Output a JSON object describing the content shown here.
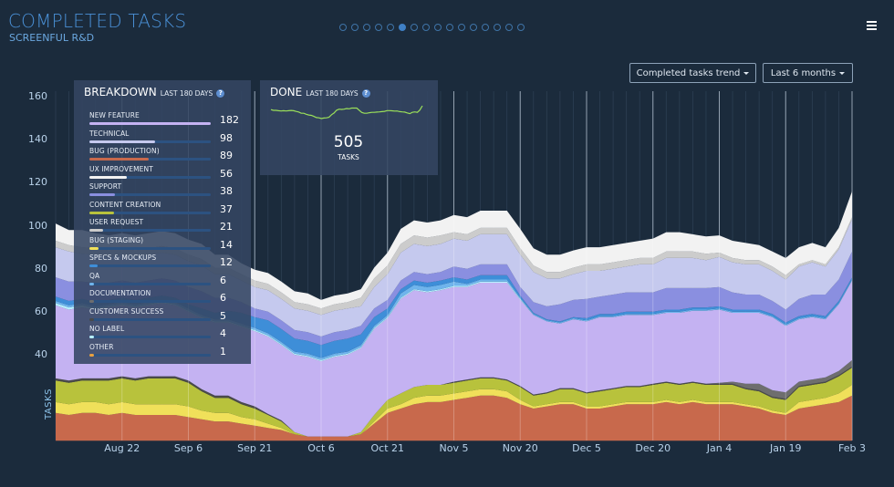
{
  "header": {
    "title": "COMPLETED TASKS",
    "subtitle": "SCREENFUL R&D",
    "pager": {
      "count": 16,
      "active_index": 5
    },
    "menu_icon": "hamburger-menu-icon"
  },
  "controls": {
    "metric_dropdown": "Completed tasks trend",
    "range_dropdown": "Last 6 months"
  },
  "breakdown": {
    "title": "BREAKDOWN",
    "subtitle": "LAST 180 DAYS",
    "help_icon": "?",
    "max": 182,
    "items": [
      {
        "label": "NEW FEATURE",
        "value": 182,
        "color": "#c4b2f2"
      },
      {
        "label": "TECHNICAL",
        "value": 98,
        "color": "#c5c9ee"
      },
      {
        "label": "BUG (PRODUCTION)",
        "value": 89,
        "color": "#c8694c"
      },
      {
        "label": "UX IMPROVEMENT",
        "value": 56,
        "color": "#f2f2f2"
      },
      {
        "label": "SUPPORT",
        "value": 38,
        "color": "#8a8fe0"
      },
      {
        "label": "CONTENT CREATION",
        "value": 37,
        "color": "#b8c23c"
      },
      {
        "label": "USER REQUEST",
        "value": 21,
        "color": "#cccccc"
      },
      {
        "label": "BUG (STAGING)",
        "value": 14,
        "color": "#f0e05a"
      },
      {
        "label": "SPECS & MOCKUPS",
        "value": 12,
        "color": "#3e8ed8"
      },
      {
        "label": "QA",
        "value": 6,
        "color": "#6fb4ec"
      },
      {
        "label": "DOCUMENTATION",
        "value": 6,
        "color": "#6e6e6e"
      },
      {
        "label": "CUSTOMER SUCCESS",
        "value": 5,
        "color": "#4a4a4a"
      },
      {
        "label": "NO LABEL",
        "value": 4,
        "color": "#b8f0ff"
      },
      {
        "label": "OTHER",
        "value": 1,
        "color": "#e8a040"
      }
    ]
  },
  "done": {
    "title": "DONE",
    "subtitle": "LAST 180 DAYS",
    "help_icon": "?",
    "value": "505",
    "unit": "TASKS",
    "sparkline_color": "#9be05a"
  },
  "chart_data": {
    "type": "area",
    "stacked": true,
    "title": "Completed tasks trend",
    "xlabel": "",
    "ylabel": "TASKS",
    "ylim": [
      0,
      165
    ],
    "yticks": [
      40,
      60,
      80,
      100,
      120,
      140,
      160
    ],
    "xtick_labels": [
      "Aug 22",
      "Sep 6",
      "Sep 21",
      "Oct 6",
      "Oct 21",
      "Nov 5",
      "Nov 20",
      "Dec 5",
      "Dec 20",
      "Jan 4",
      "Jan 19",
      "Feb 3"
    ],
    "grid": "vertical",
    "x_dates": [
      "Aug 7",
      "Aug 10",
      "Aug 13",
      "Aug 16",
      "Aug 19",
      "Aug 22",
      "Aug 25",
      "Aug 28",
      "Aug 31",
      "Sep 3",
      "Sep 6",
      "Sep 9",
      "Sep 12",
      "Sep 15",
      "Sep 18",
      "Sep 21",
      "Sep 24",
      "Sep 27",
      "Sep 30",
      "Oct 3",
      "Oct 6",
      "Oct 9",
      "Oct 12",
      "Oct 15",
      "Oct 18",
      "Oct 21",
      "Oct 24",
      "Oct 27",
      "Oct 30",
      "Nov 2",
      "Nov 5",
      "Nov 8",
      "Nov 11",
      "Nov 14",
      "Nov 17",
      "Nov 20",
      "Nov 23",
      "Nov 26",
      "Nov 29",
      "Dec 2",
      "Dec 5",
      "Dec 8",
      "Dec 11",
      "Dec 14",
      "Dec 17",
      "Dec 20",
      "Dec 23",
      "Dec 26",
      "Dec 29",
      "Jan 1",
      "Jan 4",
      "Jan 7",
      "Jan 10",
      "Jan 13",
      "Jan 16",
      "Jan 19",
      "Jan 22",
      "Jan 25",
      "Jan 28",
      "Jan 31",
      "Feb 3"
    ],
    "series": [
      {
        "name": "Bug (production)",
        "color": "#c8694c",
        "values": [
          13,
          12,
          13,
          13,
          12,
          13,
          12,
          12,
          12,
          12,
          11,
          10,
          9,
          9,
          8,
          7,
          6,
          5,
          3,
          2,
          2,
          2,
          2,
          3,
          8,
          13,
          15,
          17,
          18,
          18,
          19,
          20,
          21,
          21,
          20,
          17,
          15,
          16,
          17,
          17,
          15,
          15,
          16,
          17,
          17,
          17,
          18,
          17,
          18,
          17,
          17,
          17,
          16,
          15,
          13,
          12,
          15,
          16,
          17,
          18,
          21
        ]
      },
      {
        "name": "Bug (staging)",
        "color": "#f0e05a",
        "values": [
          5,
          5,
          5,
          5,
          5,
          5,
          5,
          5,
          5,
          5,
          5,
          4,
          4,
          4,
          3,
          3,
          2,
          1,
          0,
          0,
          0,
          0,
          0,
          0,
          1,
          2,
          2,
          3,
          3,
          3,
          3,
          3,
          3,
          3,
          3,
          2,
          1,
          1,
          1,
          1,
          1,
          1,
          1,
          1,
          1,
          1,
          1,
          1,
          1,
          1,
          1,
          1,
          1,
          1,
          1,
          1,
          3,
          3,
          3,
          4,
          5
        ]
      },
      {
        "name": "Content creation",
        "color": "#b8c23c",
        "values": [
          10,
          10,
          10,
          10,
          11,
          11,
          11,
          12,
          12,
          12,
          11,
          9,
          7,
          7,
          6,
          5,
          4,
          3,
          1,
          0,
          0,
          0,
          0,
          1,
          3,
          4,
          5,
          5,
          5,
          5,
          5,
          5,
          5,
          5,
          5,
          6,
          5,
          5,
          6,
          6,
          6,
          7,
          7,
          7,
          7,
          8,
          8,
          8,
          8,
          8,
          8,
          8,
          7,
          7,
          6,
          6,
          7,
          7,
          7,
          8,
          8
        ]
      },
      {
        "name": "Customer success",
        "color": "#4a4a4a",
        "values": [
          1,
          1,
          1,
          1,
          1,
          1,
          1,
          1,
          1,
          1,
          1,
          1,
          1,
          1,
          1,
          1,
          0.5,
          0.5,
          0,
          0,
          0,
          0,
          0,
          0,
          0,
          0,
          0,
          0,
          0,
          0,
          0.5,
          0.5,
          0.5,
          0.5,
          0.5,
          0.5,
          0.5,
          0.5,
          0.5,
          0.5,
          0.5,
          0.5,
          0.5,
          0.5,
          0.5,
          0.5,
          0.5,
          0.5,
          0.5,
          0.5,
          0.5,
          0.5,
          0.5,
          0.5,
          0.5,
          0.5,
          0.5,
          0.5,
          0.5,
          0.5,
          0.5
        ]
      },
      {
        "name": "Documentation",
        "color": "#6e6e6e",
        "values": [
          0,
          0,
          0,
          0,
          0,
          0,
          0,
          0,
          0,
          0,
          0,
          0,
          0,
          0,
          0,
          0,
          0,
          0,
          0,
          0,
          0,
          0,
          0,
          0,
          0,
          0,
          0,
          0,
          0,
          0,
          0,
          0,
          0,
          0,
          0,
          0,
          0,
          0,
          0,
          0,
          0,
          0,
          0,
          0,
          0,
          0,
          0,
          0,
          0,
          0,
          0.5,
          1,
          2,
          3,
          3,
          3,
          2,
          2,
          2,
          2,
          3
        ]
      },
      {
        "name": "New feature",
        "color": "#c4b2f2",
        "values": [
          34,
          33,
          33,
          32,
          33,
          33,
          33,
          33,
          34,
          33,
          32,
          33,
          34,
          34,
          35,
          35,
          36,
          35,
          36,
          37,
          35,
          37,
          38,
          39,
          40,
          38,
          44,
          45,
          43,
          44,
          44,
          43,
          44,
          44,
          45,
          40,
          37,
          33,
          30,
          32,
          33,
          34,
          33,
          33,
          33,
          32,
          32,
          33,
          33,
          34,
          34,
          32,
          33,
          33,
          34,
          31,
          29,
          29,
          27,
          31,
          37
        ]
      },
      {
        "name": "No label",
        "color": "#b8f0ff",
        "values": [
          1,
          1,
          1,
          0.5,
          0.5,
          0.5,
          0.5,
          0.5,
          0.5,
          0.5,
          0.5,
          0.5,
          0.5,
          0.5,
          0.5,
          0.5,
          0.5,
          0.5,
          0.5,
          0.5,
          0.5,
          0.5,
          0.5,
          0.5,
          0.5,
          0.5,
          0.5,
          0.5,
          0.5,
          0.5,
          0.5,
          0.5,
          0.5,
          0.5,
          0.5,
          0.5,
          0,
          0,
          0,
          0,
          0,
          0,
          0,
          0,
          0,
          0,
          0,
          0,
          0,
          0,
          0,
          0,
          0,
          0,
          0,
          0,
          0,
          0,
          0,
          0,
          0
        ]
      },
      {
        "name": "QA",
        "color": "#6fb4ec",
        "values": [
          1,
          1,
          1,
          1,
          1,
          1,
          1,
          1,
          1,
          1,
          1,
          1,
          1,
          1,
          1,
          1,
          1,
          1,
          1,
          1,
          1,
          1,
          1,
          1,
          1,
          1,
          2,
          2,
          2,
          2,
          2,
          1,
          1,
          1,
          1,
          0.5,
          0.5,
          0.5,
          0.5,
          0.5,
          0.5,
          0.5,
          0.5,
          0.5,
          0.5,
          0.5,
          0.5,
          0.5,
          0.5,
          0.5,
          0.5,
          0.5,
          0.5,
          0.5,
          0.5,
          0.5,
          0.5,
          0.5,
          0.5,
          0.5,
          0.5
        ]
      },
      {
        "name": "Specs & Mockups",
        "color": "#3e8ed8",
        "values": [
          2,
          2,
          2,
          2,
          2,
          2,
          2,
          2,
          2,
          2,
          2,
          3,
          3,
          4,
          5,
          5,
          6,
          6,
          6,
          6,
          6,
          6,
          6,
          5,
          4,
          3,
          2,
          2,
          2,
          2,
          2,
          2,
          2,
          2,
          2,
          1,
          0.5,
          0.5,
          0.5,
          0.5,
          1,
          1,
          1,
          1,
          1,
          1,
          1,
          1,
          1,
          1,
          1,
          1,
          1,
          1,
          1,
          1,
          1,
          1,
          1,
          1,
          1
        ]
      },
      {
        "name": "Support",
        "color": "#8a8fe0",
        "values": [
          9,
          9,
          8,
          9,
          8,
          8,
          8,
          8,
          8,
          8,
          8,
          8,
          7,
          6,
          5,
          4,
          4,
          4,
          4,
          4,
          4,
          4,
          4,
          4,
          4,
          4,
          4,
          4,
          4,
          4,
          5,
          5,
          5,
          5,
          5,
          4,
          5,
          6,
          8,
          8,
          9,
          8,
          9,
          9,
          9,
          9,
          10,
          10,
          9,
          9,
          9,
          8,
          7,
          7,
          6,
          6,
          8,
          9,
          10,
          10,
          12
        ]
      },
      {
        "name": "Technical",
        "color": "#c5c9ee",
        "values": [
          14,
          14,
          13,
          13,
          12,
          12,
          12,
          12,
          12,
          12,
          12,
          12,
          11,
          11,
          10,
          10,
          10,
          10,
          10,
          10,
          10,
          10,
          10,
          9,
          10,
          12,
          13,
          13,
          13,
          13,
          13,
          13,
          14,
          14,
          14,
          15,
          14,
          13,
          12,
          12,
          13,
          12,
          12,
          12,
          13,
          13,
          14,
          14,
          14,
          13,
          14,
          14,
          14,
          14,
          14,
          14,
          15,
          15,
          13,
          14,
          15
        ]
      },
      {
        "name": "User request",
        "color": "#cccccc",
        "values": [
          3,
          3,
          3,
          3,
          3,
          3,
          3,
          3,
          3,
          3,
          3,
          3,
          3,
          3,
          3,
          3,
          3,
          3,
          3,
          3,
          3,
          3,
          3,
          4,
          4,
          4,
          4,
          4,
          4,
          4,
          3,
          3,
          3,
          3,
          3,
          3,
          3,
          3,
          3,
          3,
          3,
          3,
          3,
          3,
          3,
          3,
          3,
          3,
          3,
          3,
          2,
          2,
          2,
          2,
          2,
          2,
          1,
          1,
          1,
          1,
          1
        ]
      },
      {
        "name": "UX improvement",
        "color": "#f2f2f2",
        "values": [
          8,
          7,
          8,
          7,
          7,
          7,
          7,
          7,
          7,
          7,
          7,
          7,
          6,
          6,
          5,
          5,
          5,
          5,
          5,
          5,
          4,
          4,
          4,
          4,
          5,
          6,
          7,
          7,
          7,
          7,
          8,
          8,
          8,
          8,
          8,
          9,
          8,
          8,
          8,
          8,
          8,
          8,
          8,
          8,
          8,
          9,
          9,
          9,
          8,
          8,
          8,
          8,
          8,
          7,
          7,
          8,
          8,
          8,
          8,
          9,
          12
        ]
      }
    ]
  }
}
